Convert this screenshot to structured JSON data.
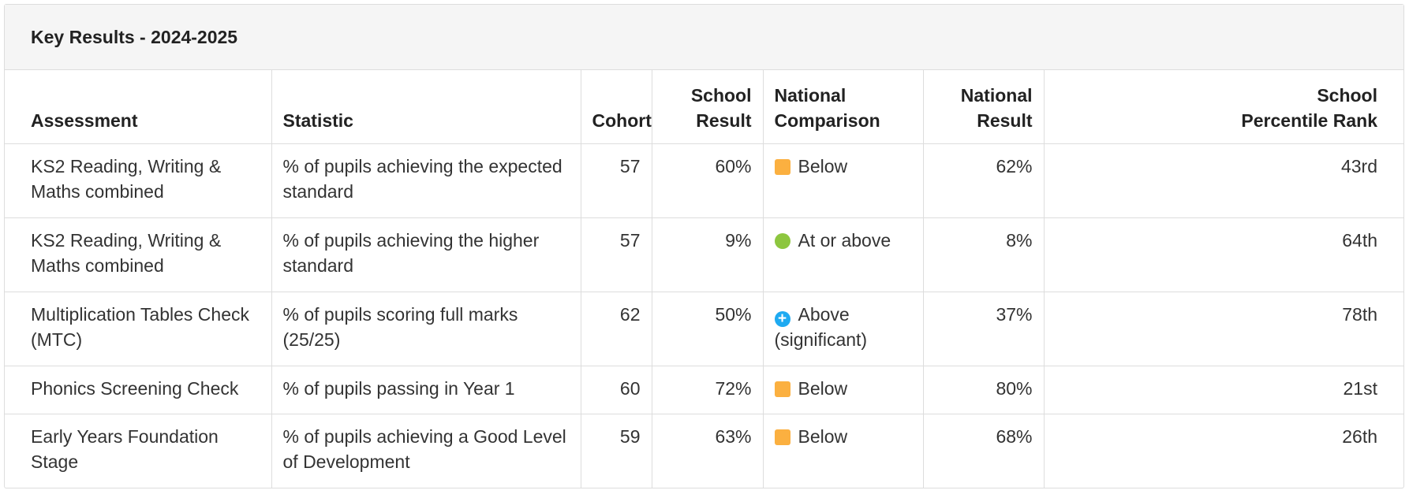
{
  "title": "Key Results - 2024-2025",
  "columns": {
    "assessment": "Assessment",
    "statistic": "Statistic",
    "cohort": "Cohort",
    "school_result": "School Result",
    "national_comparison": "National Comparison",
    "national_result": "National Result",
    "percentile_rank": "School Percentile Rank"
  },
  "rows": [
    {
      "assessment": "KS2 Reading, Writing & Maths combined",
      "statistic": "% of pupils achieving the expected standard",
      "cohort": "57",
      "school_result": "60%",
      "comparison": "Below",
      "comparison_icon": "orange-square-icon",
      "national_result": "62%",
      "percentile_rank": "43rd"
    },
    {
      "assessment": "KS2 Reading, Writing & Maths combined",
      "statistic": "% of pupils achieving the higher standard",
      "cohort": "57",
      "school_result": "9%",
      "comparison": "At or above",
      "comparison_icon": "green-circle-icon",
      "national_result": "8%",
      "percentile_rank": "64th"
    },
    {
      "assessment": "Multiplication Tables Check (MTC)",
      "statistic": "% of pupils scoring full marks (25/25)",
      "cohort": "62",
      "school_result": "50%",
      "comparison": "Above (significant)",
      "comparison_icon": "blue-plus-circle-icon",
      "national_result": "37%",
      "percentile_rank": "78th"
    },
    {
      "assessment": "Phonics Screening Check",
      "statistic": "% of pupils passing in Year 1",
      "cohort": "60",
      "school_result": "72%",
      "comparison": "Below",
      "comparison_icon": "orange-square-icon",
      "national_result": "80%",
      "percentile_rank": "21st"
    },
    {
      "assessment": "Early Years Foundation Stage",
      "statistic": "% of pupils achieving a Good Level of Development",
      "cohort": "59",
      "school_result": "63%",
      "comparison": "Below",
      "comparison_icon": "orange-square-icon",
      "national_result": "68%",
      "percentile_rank": "26th"
    }
  ],
  "colors": {
    "below": "#fbb040",
    "at_or_above": "#8dc63f",
    "above_significant": "#1eaaf1",
    "header_bg": "#f5f5f5",
    "border": "#dddddd"
  }
}
